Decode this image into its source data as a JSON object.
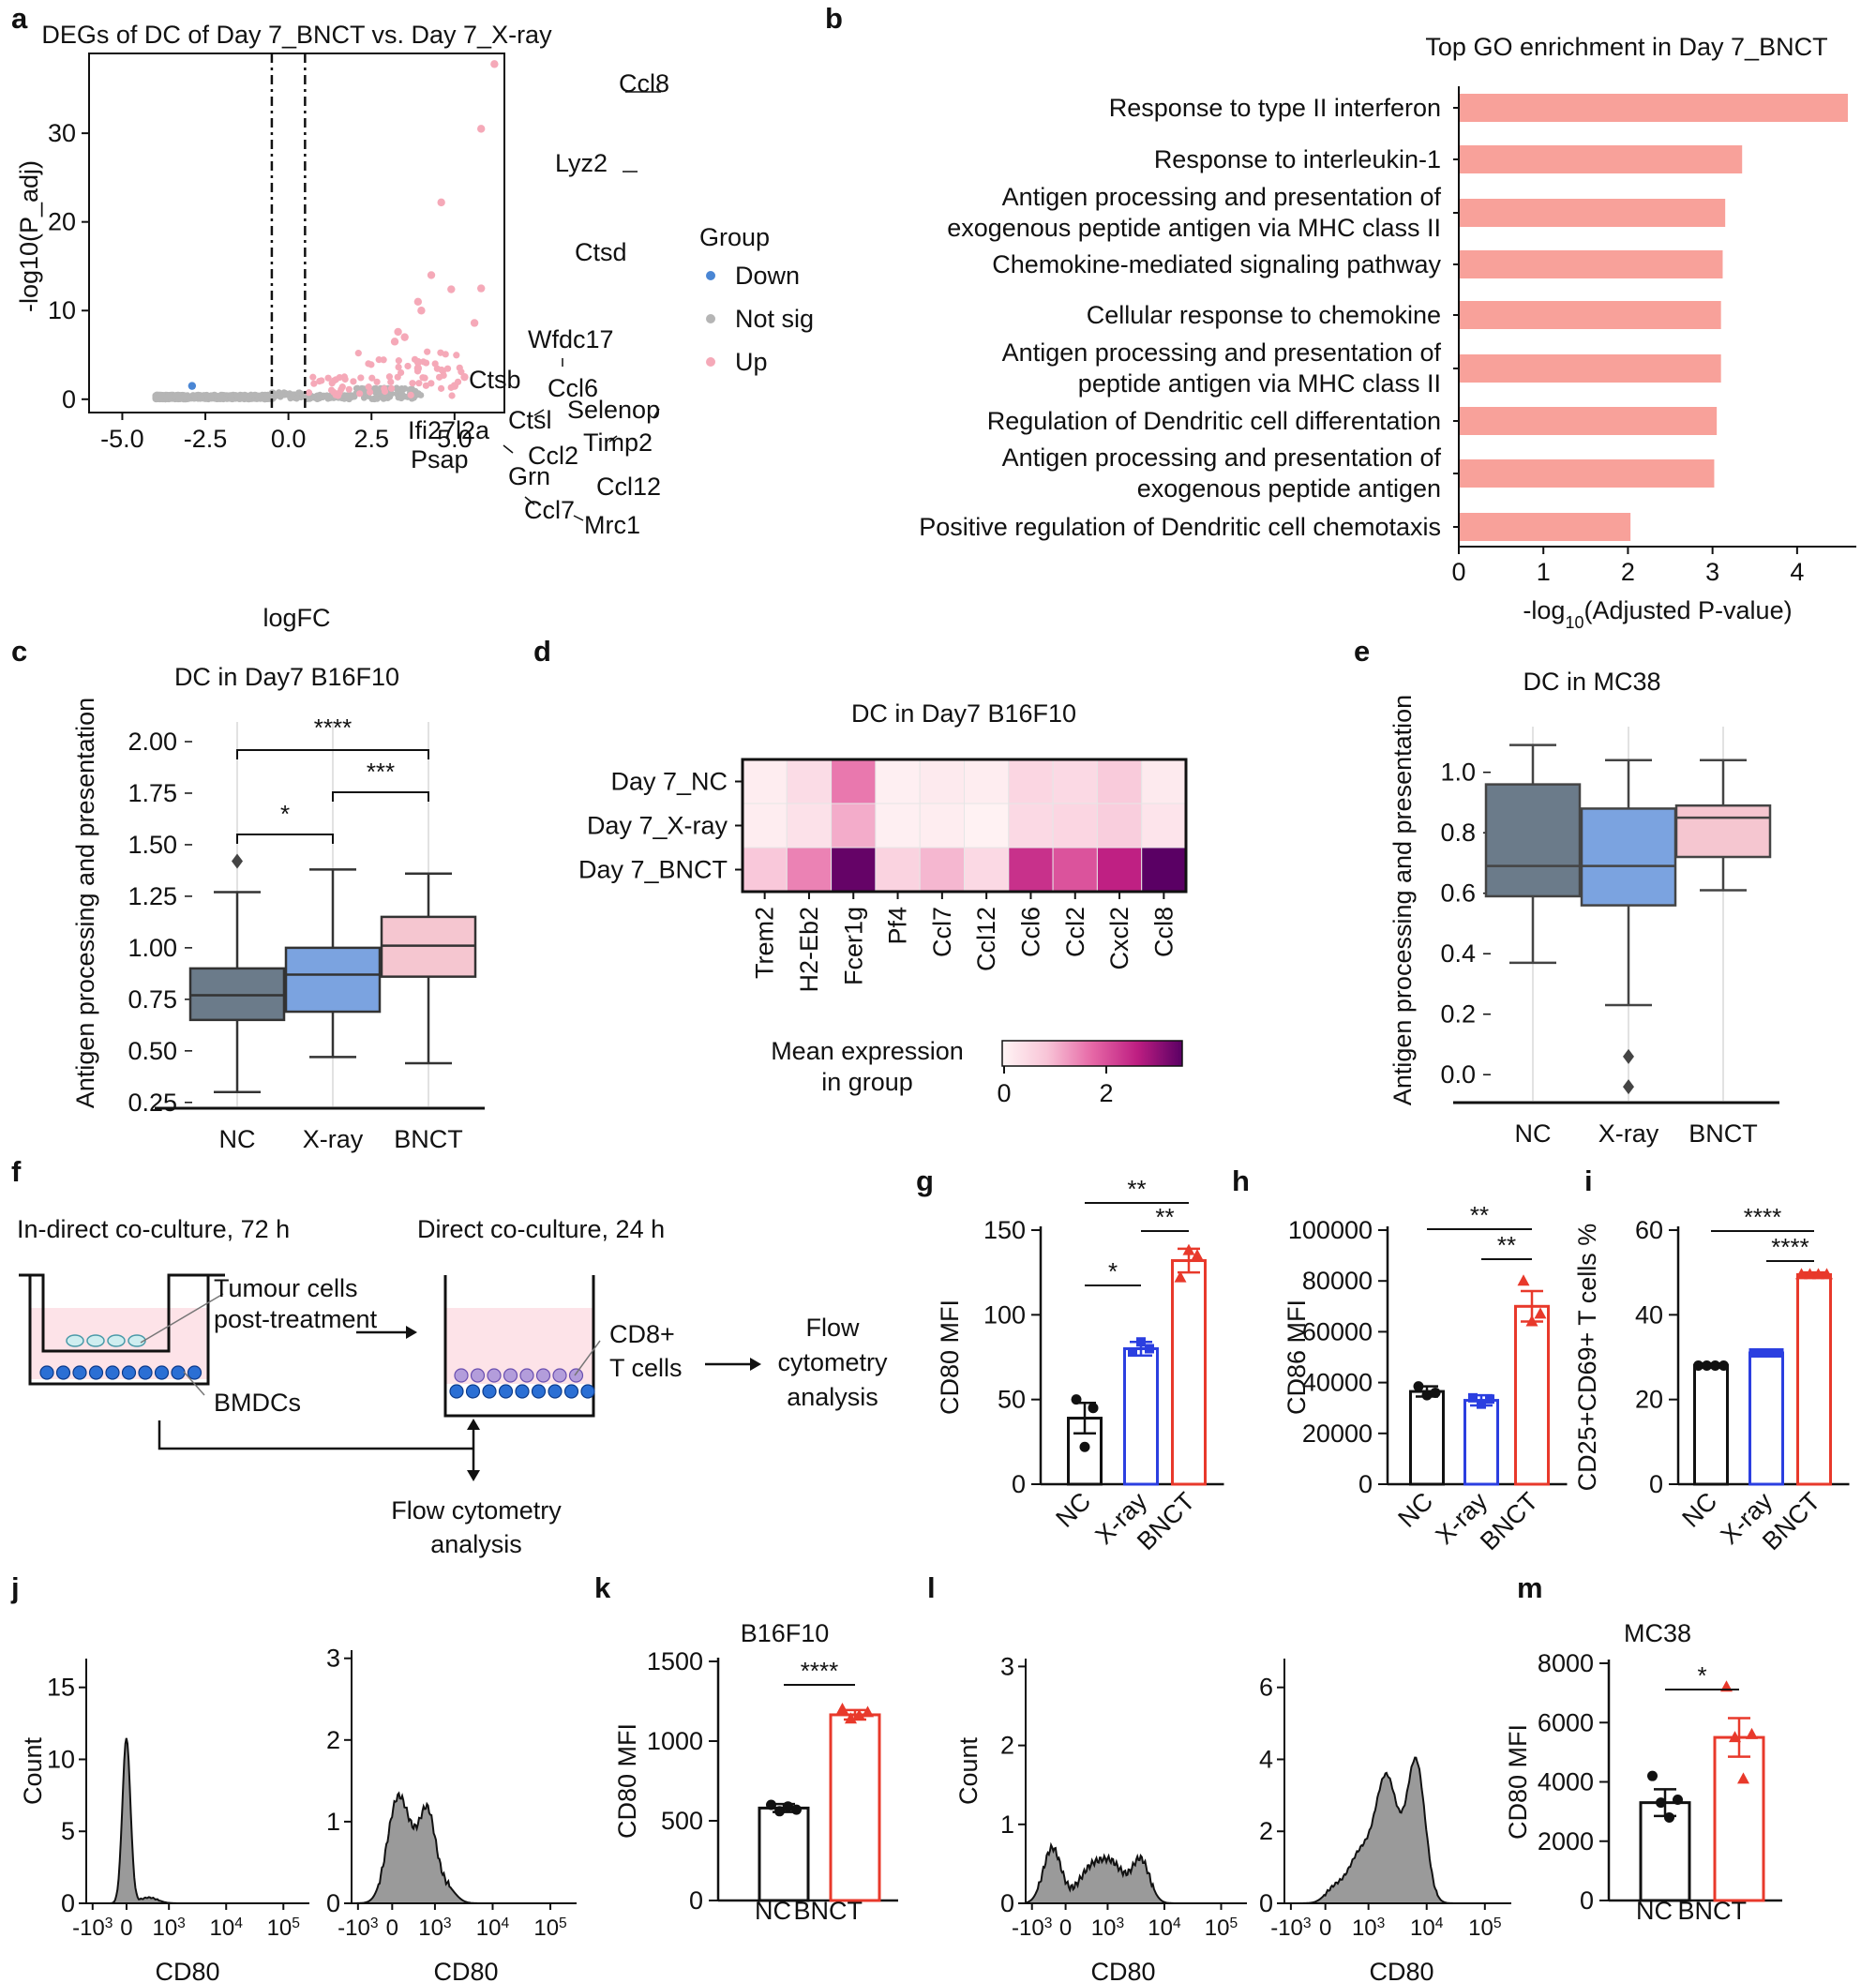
{
  "panels": {
    "a": {
      "letter": "a",
      "title": "DEGs of DC of Day 7_BNCT vs. Day 7_X-ray",
      "xlabel": "logFC",
      "ylabel": "-log10(P_adj)",
      "legend_title": "Group",
      "legend_items": [
        "Down",
        "Not sig",
        "Up"
      ]
    },
    "b": {
      "letter": "b",
      "title": "Top GO enrichment in Day 7_BNCT",
      "xlabel": "-log10(Adjusted P-value)"
    },
    "c": {
      "letter": "c",
      "title": "DC in Day7 B16F10",
      "ylabel": "Antigen processing and presentation"
    },
    "d": {
      "letter": "d",
      "title": "DC in Day7 B16F10",
      "cbar_label1": "Mean expression",
      "cbar_label2": "in group",
      "cbar_ticks": [
        "0",
        "2"
      ]
    },
    "e": {
      "letter": "e",
      "title": "DC in MC38",
      "ylabel": "Antigen processing and presentation"
    },
    "f": {
      "letter": "f",
      "step1": "In-direct co-culture, 72 h",
      "step2": "Direct co-culture, 24 h",
      "tumour1": "Tumour cells",
      "tumour2": "post-treatment",
      "bmdc": "BMDCs",
      "cd8a": "CD8+",
      "cd8b": "T cells",
      "flow1a": "Flow",
      "flow1b": "cytometry",
      "flow1c": "analysis",
      "flow2a": "Flow cytometry",
      "flow2b": "analysis"
    },
    "g": {
      "letter": "g"
    },
    "h": {
      "letter": "h"
    },
    "i": {
      "letter": "i"
    },
    "j": {
      "letter": "j",
      "ylabel": "Count",
      "xlabel": "CD80"
    },
    "k": {
      "letter": "k",
      "title": "B16F10"
    },
    "l": {
      "letter": "l",
      "ylabel": "Count",
      "xlabel": "CD80"
    },
    "m": {
      "letter": "m",
      "title": "MC38"
    }
  },
  "chart_data": [
    {
      "id": "a",
      "type": "scatter",
      "xlim": [
        -6,
        6.5
      ],
      "ylim": [
        -1.5,
        39
      ],
      "xticks": [
        "-5.0",
        "-2.5",
        "0.0",
        "2.5",
        "5.0"
      ],
      "yticks": [
        "0",
        "10",
        "20",
        "30"
      ],
      "thresholds": [
        -0.5,
        0.5
      ],
      "points": [
        {
          "label": "Ccl8",
          "x": 6.2,
          "y": 37.8
        },
        {
          "label": "Lyz2",
          "x": 5.8,
          "y": 30.5
        },
        {
          "label": "Ctsd",
          "x": 4.6,
          "y": 22.2
        },
        {
          "label": "Wfdc17",
          "x": 4.3,
          "y": 14.0
        },
        {
          "label": "Ccl6",
          "x": 4.9,
          "y": 12.4
        },
        {
          "label": "Selenop",
          "x": 5.8,
          "y": 12.5
        },
        {
          "label": "Ctsb",
          "x": 3.9,
          "y": 11.0
        },
        {
          "label": "Ctsl",
          "x": 4.0,
          "y": 10.0
        },
        {
          "label": "Ifi27l2a",
          "x": 3.3,
          "y": 7.6
        },
        {
          "label": "Psap",
          "x": 3.5,
          "y": 7.0
        },
        {
          "label": "Ccl2",
          "x": 3.2,
          "y": 6.5
        },
        {
          "label": "Timp2",
          "x": 5.6,
          "y": 8.6
        },
        {
          "label": "Grn",
          "x": 3.9,
          "y": 4.2
        },
        {
          "label": "Ccl7",
          "x": 3.9,
          "y": 3.5
        },
        {
          "label": "Ccl12",
          "x": 5.3,
          "y": 2.5
        },
        {
          "label": "Mrc1",
          "x": 5.0,
          "y": 1.5
        },
        {
          "label": "",
          "x": -2.9,
          "y": 1.5,
          "group": "Down"
        }
      ]
    },
    {
      "id": "b",
      "type": "bar",
      "orientation": "horizontal",
      "xlim": [
        0,
        4.7
      ],
      "xticks": [
        "0",
        "1",
        "2",
        "3",
        "4"
      ],
      "categories": [
        "Response to type II interferon",
        "Response to interleukin-1",
        "Antigen processing and presentation of|exogenous peptide antigen via MHC class II",
        "Chemokine-mediated signaling pathway",
        "Cellular response to chemokine",
        "Antigen processing and presentation of|peptide antigen via MHC class II",
        "Regulation of Dendritic cell differentation",
        "Antigen processing and presentation of|exogenous peptide antigen",
        "Positive regulation of Dendritic cell chemotaxis"
      ],
      "values": [
        4.6,
        3.35,
        3.15,
        3.12,
        3.1,
        3.1,
        3.05,
        3.02,
        2.03
      ]
    },
    {
      "id": "c",
      "type": "box",
      "categories": [
        "NC",
        "X-ray",
        "BNCT"
      ],
      "ylim": [
        0.24,
        2.05
      ],
      "yticks": [
        "0.25",
        "0.50",
        "0.75",
        "1.00",
        "1.25",
        "1.50",
        "1.75",
        "2.00"
      ],
      "boxes": [
        {
          "min": 0.3,
          "q1": 0.65,
          "median": 0.77,
          "q3": 0.9,
          "max": 1.27,
          "outliers": [
            1.42
          ]
        },
        {
          "min": 0.47,
          "q1": 0.69,
          "median": 0.87,
          "q3": 1.0,
          "max": 1.38,
          "outliers": []
        },
        {
          "min": 0.44,
          "q1": 0.86,
          "median": 1.01,
          "q3": 1.15,
          "max": 1.36,
          "outliers": []
        }
      ],
      "brackets": [
        [
          "NC",
          "BNCT",
          "****"
        ],
        [
          "X-ray",
          "BNCT",
          "***"
        ],
        [
          "NC",
          "X-ray",
          "*"
        ]
      ]
    },
    {
      "id": "d",
      "type": "heatmap",
      "rows": [
        "Day 7_NC",
        "Day 7_X-ray",
        "Day 7_BNCT"
      ],
      "cols": [
        "Trem2",
        "H2-Eb2",
        "Fcer1g",
        "Pf4",
        "Ccl7",
        "Ccl12",
        "Ccl6",
        "Ccl2",
        "Cxcl2",
        "Ccl8"
      ],
      "values": [
        [
          0.15,
          0.45,
          1.6,
          0.1,
          0.2,
          0.15,
          0.55,
          0.5,
          0.75,
          0.2
        ],
        [
          0.15,
          0.35,
          1.1,
          0.1,
          0.15,
          0.05,
          0.5,
          0.55,
          0.7,
          0.3
        ],
        [
          0.8,
          1.5,
          3.4,
          0.6,
          1.0,
          0.5,
          2.4,
          2.0,
          2.6,
          3.5
        ]
      ],
      "vmin": 0,
      "vmax": 3.5
    },
    {
      "id": "e",
      "type": "box",
      "categories": [
        "NC",
        "X-ray",
        "BNCT"
      ],
      "ylim": [
        -0.08,
        1.12
      ],
      "yticks": [
        "0.0",
        "0.2",
        "0.4",
        "0.6",
        "0.8",
        "1.0"
      ],
      "boxes": [
        {
          "min": 0.37,
          "q1": 0.59,
          "median": 0.69,
          "q3": 0.96,
          "max": 1.09,
          "outliers": []
        },
        {
          "min": 0.23,
          "q1": 0.56,
          "median": 0.69,
          "q3": 0.88,
          "max": 1.04,
          "outliers": [
            0.06,
            -0.04
          ]
        },
        {
          "min": 0.61,
          "q1": 0.72,
          "median": 0.85,
          "q3": 0.89,
          "max": 1.04,
          "outliers": []
        }
      ]
    },
    {
      "id": "g",
      "type": "bar",
      "ylabel": "CD80 MFI",
      "categories": [
        "NC",
        "X-ray",
        "BNCT"
      ],
      "ylim": [
        0,
        150
      ],
      "yticks": [
        "0",
        "50",
        "100",
        "150"
      ],
      "values": [
        39,
        80,
        132
      ],
      "errors": [
        9,
        4,
        7
      ],
      "points": [
        [
          50,
          22,
          45
        ],
        [
          78,
          84,
          80
        ],
        [
          122,
          138,
          135
        ]
      ],
      "brackets": [
        [
          "NC",
          "BNCT",
          "**"
        ],
        [
          "X-ray",
          "BNCT",
          "**"
        ],
        [
          "NC",
          "X-ray",
          "*"
        ]
      ]
    },
    {
      "id": "h",
      "type": "bar",
      "ylabel": "CD86 MFI",
      "categories": [
        "NC",
        "X-ray",
        "BNCT"
      ],
      "ylim": [
        0,
        100000
      ],
      "yticks": [
        "0",
        "20000",
        "40000",
        "60000",
        "80000",
        "100000"
      ],
      "values": [
        36500,
        33000,
        70000
      ],
      "errors": [
        2000,
        2000,
        6000
      ],
      "points": [
        [
          38500,
          35000,
          36000
        ],
        [
          34000,
          31500,
          33500
        ],
        [
          80000,
          64000,
          67000
        ]
      ],
      "brackets": [
        [
          "NC",
          "BNCT",
          "**"
        ],
        [
          "X-ray",
          "BNCT",
          "**"
        ]
      ]
    },
    {
      "id": "i",
      "type": "bar",
      "ylabel": "CD25+CD69+ T cells %",
      "categories": [
        "NC",
        "X-ray",
        "BNCT"
      ],
      "ylim": [
        0,
        60
      ],
      "yticks": [
        "0",
        "20",
        "40",
        "60"
      ],
      "values": [
        28,
        31,
        49.5
      ],
      "errors": [
        0.5,
        0.5,
        0.5
      ],
      "points": [
        [
          28,
          28,
          28,
          28
        ],
        [
          31,
          31,
          31,
          31
        ],
        [
          49.5,
          49.5,
          49.5,
          49.5
        ]
      ],
      "brackets": [
        [
          "NC",
          "BNCT",
          "****"
        ],
        [
          "X-ray",
          "BNCT",
          "****"
        ]
      ]
    },
    {
      "id": "j",
      "type": "area",
      "ylabel": "Count",
      "xlabel": "CD80",
      "xticks": [
        "-10^3",
        "0",
        "10^3",
        "10^4",
        "10^5"
      ],
      "left": {
        "yticks": [
          "0",
          "5",
          "10",
          "15"
        ],
        "ymax": 17,
        "peaks": [
          [
            0.18,
            11.5,
            0.018
          ],
          [
            0.28,
            0.4,
            0.04
          ]
        ]
      },
      "right": {
        "yticks": [
          "0",
          "1",
          "2",
          "3"
        ],
        "ymax": 3.1,
        "peaks": [
          [
            0.2,
            1.1,
            0.045
          ],
          [
            0.34,
            0.95,
            0.035
          ],
          [
            0.27,
            0.5,
            0.05
          ],
          [
            0.42,
            0.2,
            0.04
          ]
        ]
      }
    },
    {
      "id": "k",
      "type": "bar",
      "ylabel": "CD80 MFI",
      "categories": [
        "NC",
        "BNCT"
      ],
      "ylim": [
        0,
        1500
      ],
      "yticks": [
        "0",
        "500",
        "1000",
        "1500"
      ],
      "values": [
        580,
        1165
      ],
      "errors": [
        25,
        30
      ],
      "points": [
        [
          600,
          560,
          590,
          570
        ],
        [
          1200,
          1140,
          1160,
          1180
        ]
      ],
      "brackets": [
        [
          "NC",
          "BNCT",
          "****"
        ]
      ]
    },
    {
      "id": "l",
      "type": "area",
      "ylabel": "Count",
      "xlabel": "CD80",
      "xticks": [
        "-10^3",
        "0",
        "10^3",
        "10^4",
        "10^5"
      ],
      "left": {
        "yticks": [
          "0",
          "1",
          "2",
          "3"
        ],
        "ymax": 3.1,
        "peaks": [
          [
            0.12,
            0.7,
            0.04
          ],
          [
            0.3,
            0.45,
            0.06
          ],
          [
            0.52,
            0.55,
            0.04
          ],
          [
            0.4,
            0.4,
            0.05
          ]
        ]
      },
      "right": {
        "yticks": [
          "0",
          "2",
          "4",
          "6"
        ],
        "ymax": 6.8,
        "peaks": [
          [
            0.45,
            3.5,
            0.05
          ],
          [
            0.58,
            3.9,
            0.04
          ],
          [
            0.33,
            1.3,
            0.05
          ],
          [
            0.22,
            0.4,
            0.04
          ]
        ]
      }
    },
    {
      "id": "m",
      "type": "bar",
      "ylabel": "CD80 MFI",
      "categories": [
        "NC",
        "BNCT"
      ],
      "ylim": [
        0,
        8000
      ],
      "yticks": [
        "0",
        "2000",
        "4000",
        "6000",
        "8000"
      ],
      "values": [
        3300,
        5500
      ],
      "errors": [
        450,
        650
      ],
      "points": [
        [
          4200,
          3300,
          2800,
          3400
        ],
        [
          7200,
          5500,
          4100,
          5600
        ]
      ],
      "brackets": [
        [
          "NC",
          "BNCT",
          "*"
        ]
      ]
    }
  ],
  "colors": {
    "up": "#f5a9b8",
    "down": "#4a86d4",
    "notsig": "#b5b5b5",
    "goBar": "#f8a19a",
    "boxNC": "#6b7b8a",
    "boxXray": "#7ba3e0",
    "boxBNCT": "#f5c6d0",
    "barNC": "#111111",
    "barXray": "#2b3fe0",
    "barBNCT": "#e8392b",
    "hist": "#9a9a9a"
  }
}
